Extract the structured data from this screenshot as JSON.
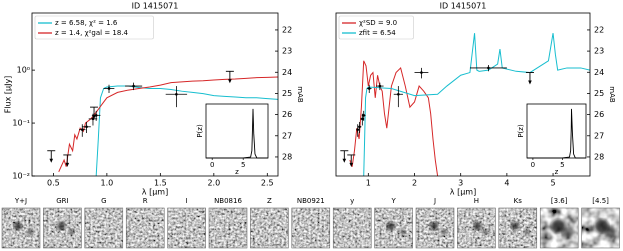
{
  "chart_data": [
    {
      "type": "line",
      "title": "ID 1415071",
      "xlabel": "λ [μm]",
      "ylabel": "Flux [μJy]",
      "y2label": "mAB",
      "xlim": [
        0.3,
        2.6
      ],
      "xticks": [
        0.5,
        {
          "value": 1,
          "label": "1.0"
        },
        1.5,
        {
          "value": 2,
          "label": "2.0"
        },
        2.5
      ],
      "log_y": true,
      "ylim": [
        0.01,
        12
      ],
      "yticks": [
        {
          "value": 0.01,
          "label": "10⁻²"
        },
        {
          "value": 0.1,
          "label": "10⁻¹"
        },
        {
          "value": 1,
          "label": "10⁰"
        }
      ],
      "y2lim": [
        28.9,
        21.2
      ],
      "y2ticks": [
        22,
        23,
        24,
        25,
        26,
        27,
        28
      ],
      "legend": "upper left",
      "series": [
        {
          "name": "z = 6.58, χ² = 1.6",
          "color": "#17becf",
          "style": "line",
          "x": [
            0.9,
            0.92,
            0.94,
            0.97,
            1.0,
            1.1,
            1.2,
            1.3,
            1.4,
            1.5,
            1.6,
            1.7,
            1.8,
            1.9,
            2.0,
            2.1,
            2.2,
            2.3,
            2.4,
            2.5,
            2.6
          ],
          "values": [
            0.01,
            0.05,
            0.3,
            0.45,
            0.48,
            0.5,
            0.5,
            0.47,
            0.45,
            0.45,
            0.43,
            0.4,
            0.38,
            0.36,
            0.33,
            0.32,
            0.31,
            0.3,
            0.3,
            0.29,
            0.28
          ]
        },
        {
          "name": "z = 1.4, χ²gal = 18.4",
          "color": "#d62728",
          "style": "line",
          "x": [
            0.55,
            0.6,
            0.62,
            0.65,
            0.68,
            0.7,
            0.72,
            0.75,
            0.78,
            0.8,
            0.85,
            0.9,
            0.95,
            1.0,
            1.1,
            1.2,
            1.3,
            1.4,
            1.5,
            1.6,
            1.7,
            1.8,
            1.9,
            2.0,
            2.1,
            2.2,
            2.3,
            2.4,
            2.5,
            2.6
          ],
          "values": [
            0.012,
            0.02,
            0.015,
            0.04,
            0.03,
            0.06,
            0.05,
            0.08,
            0.07,
            0.1,
            0.12,
            0.16,
            0.22,
            0.3,
            0.38,
            0.42,
            0.45,
            0.48,
            0.52,
            0.58,
            0.6,
            0.62,
            0.63,
            0.65,
            0.67,
            0.68,
            0.7,
            0.72,
            0.73,
            0.74
          ]
        },
        {
          "color": "#000000",
          "style": "errorbar",
          "x": [
            0.77,
            0.81,
            0.87,
            0.9,
            1.02,
            1.25,
            1.65
          ],
          "values": [
            0.075,
            0.085,
            0.12,
            0.14,
            0.45,
            0.5,
            0.35
          ],
          "errors": [
            0.02,
            0.02,
            0.03,
            0.03,
            0.08,
            0.08,
            0.15
          ],
          "xerrors": [
            0.03,
            0.04,
            0.04,
            0.04,
            0.05,
            0.08,
            0.1
          ]
        },
        {
          "color": "#000000",
          "style": "upper_limit",
          "x": [
            0.48,
            0.63,
            0.88,
            2.15
          ],
          "values": [
            0.03,
            0.025,
            0.2,
            0.95
          ]
        }
      ],
      "inset": {
        "type": "line",
        "xlabel": "z",
        "ylabel": "P(z)",
        "xlim": [
          -1,
          9
        ],
        "xticks": [
          0,
          5
        ],
        "ylim": [
          0,
          1.1
        ],
        "color": "#000000",
        "x": [
          -1,
          5,
          6.2,
          6.4,
          6.5,
          6.58,
          6.7,
          6.9,
          7.2,
          9
        ],
        "values": [
          0,
          0,
          0.02,
          0.15,
          0.6,
          1,
          0.5,
          0.08,
          0,
          0
        ]
      }
    },
    {
      "type": "line",
      "title": "ID 1415071",
      "xlabel": "λ [μm]",
      "y2label": "mAB",
      "xlim": [
        0.3,
        5.8
      ],
      "xticks": [
        1,
        2,
        3,
        4,
        5
      ],
      "log_y": true,
      "ylim": [
        0.01,
        12
      ],
      "y2lim": [
        28.9,
        21.2
      ],
      "y2ticks": [
        22,
        23,
        24,
        25,
        26,
        27,
        28
      ],
      "legend": "upper left",
      "series": [
        {
          "name": "χ²SD = 9.0",
          "color": "#d62728",
          "style": "line",
          "x": [
            0.6,
            0.65,
            0.7,
            0.75,
            0.8,
            0.85,
            0.9,
            0.95,
            1.0,
            1.05,
            1.1,
            1.15,
            1.2,
            1.25,
            1.3,
            1.35,
            1.4,
            1.45,
            1.5,
            1.6,
            1.7,
            1.8,
            1.9,
            2.0,
            2.1,
            2.2,
            2.3,
            2.35,
            2.4,
            2.45,
            2.5
          ],
          "values": [
            0.02,
            0.015,
            0.03,
            0.08,
            0.05,
            0.2,
            1.5,
            1.2,
            0.5,
            0.8,
            0.9,
            0.3,
            0.8,
            0.5,
            0.4,
            0.15,
            0.08,
            0.2,
            0.5,
            0.9,
            1.1,
            0.5,
            0.2,
            0.25,
            0.5,
            0.4,
            0.3,
            0.15,
            0.05,
            0.02,
            0.01
          ]
        },
        {
          "name": "zfit = 6.54",
          "color": "#17becf",
          "style": "line",
          "x": [
            0.9,
            0.92,
            0.94,
            0.97,
            1.0,
            1.5,
            2.0,
            2.5,
            2.7,
            3.0,
            3.2,
            3.3,
            3.35,
            3.4,
            3.6,
            3.8,
            3.85,
            3.9,
            4.2,
            4.5,
            4.9,
            5.0,
            5.05,
            5.1,
            5.3,
            5.6,
            5.8
          ],
          "values": [
            0.01,
            0.05,
            0.3,
            0.45,
            0.48,
            0.45,
            0.33,
            0.35,
            0.5,
            0.8,
            0.9,
            5,
            1,
            0.95,
            1,
            1.3,
            2.5,
            1.1,
            0.95,
            0.9,
            1.5,
            5,
            2,
            1,
            1.1,
            1.1,
            1.0
          ]
        },
        {
          "color": "#000000",
          "style": "errorbar",
          "x": [
            0.77,
            0.81,
            0.87,
            0.9,
            1.02,
            1.25,
            1.65,
            2.15,
            3.6
          ],
          "values": [
            0.075,
            0.085,
            0.12,
            0.14,
            0.45,
            0.5,
            0.35,
            0.9,
            1.1
          ],
          "errors": [
            0.02,
            0.02,
            0.03,
            0.03,
            0.08,
            0.08,
            0.15,
            0.2,
            0.15
          ],
          "xerrors": [
            0.03,
            0.04,
            0.04,
            0.04,
            0.05,
            0.08,
            0.1,
            0.15,
            0.4
          ]
        },
        {
          "color": "#000000",
          "style": "upper_limit",
          "x": [
            0.48,
            0.63,
            4.5
          ],
          "values": [
            0.03,
            0.025,
            0.9
          ]
        }
      ],
      "inset": {
        "type": "line",
        "xlabel": "z",
        "ylabel": "P(z)",
        "xlim": [
          -1,
          9
        ],
        "xticks": [
          0,
          5
        ],
        "ylim": [
          0,
          1.1
        ],
        "color": "#000000",
        "x": [
          -1,
          5,
          6.2,
          6.4,
          6.5,
          6.54,
          6.7,
          6.9,
          7.2,
          9
        ],
        "values": [
          0,
          0,
          0.02,
          0.15,
          0.6,
          1,
          0.5,
          0.08,
          0,
          0
        ]
      }
    }
  ],
  "image_strip": {
    "labels": [
      "Y+J",
      "GRI",
      "G",
      "R",
      "I",
      "NB0816",
      "Z",
      "NB0921",
      "y",
      "Y",
      "J",
      "H",
      "Ks",
      "[3.6]",
      "[4.5]"
    ]
  }
}
